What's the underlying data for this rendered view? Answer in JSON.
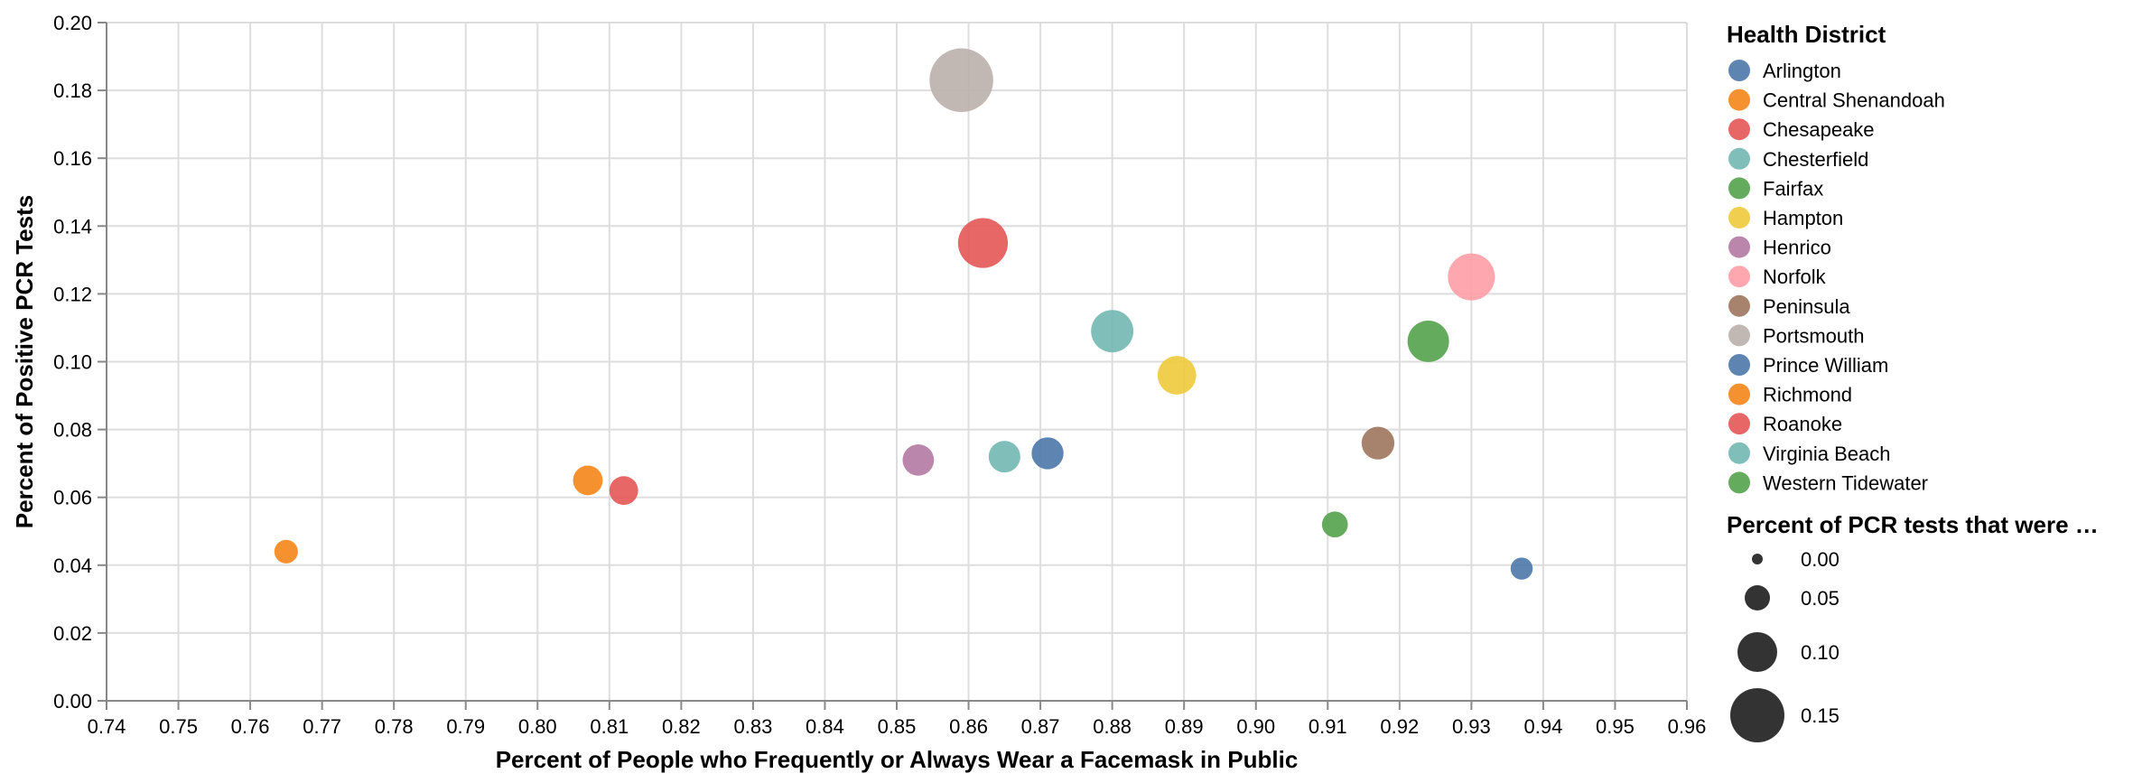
{
  "chart_data": {
    "type": "scatter",
    "title": "",
    "xlabel": "Percent of People who Frequently or Always Wear a Facemask in Public",
    "ylabel": "Percent of Positive PCR Tests",
    "xlim": [
      0.74,
      0.96
    ],
    "ylim": [
      0.0,
      0.2
    ],
    "x_ticks": [
      "0.74",
      "0.75",
      "0.76",
      "0.77",
      "0.78",
      "0.79",
      "0.80",
      "0.81",
      "0.82",
      "0.83",
      "0.84",
      "0.85",
      "0.86",
      "0.87",
      "0.88",
      "0.89",
      "0.90",
      "0.91",
      "0.92",
      "0.93",
      "0.94",
      "0.95",
      "0.96"
    ],
    "y_ticks": [
      "0.00",
      "0.02",
      "0.04",
      "0.06",
      "0.08",
      "0.10",
      "0.12",
      "0.14",
      "0.16",
      "0.18",
      "0.20"
    ],
    "grid": true,
    "legend_position": "right",
    "color_legend": {
      "title": "Health District",
      "items": [
        {
          "name": "Arlington",
          "color": "#4c78a8"
        },
        {
          "name": "Central Shenandoah",
          "color": "#f58518"
        },
        {
          "name": "Chesapeake",
          "color": "#e45756"
        },
        {
          "name": "Chesterfield",
          "color": "#72b7b2"
        },
        {
          "name": "Fairfax",
          "color": "#54a24b"
        },
        {
          "name": "Hampton",
          "color": "#eeca3b"
        },
        {
          "name": "Henrico",
          "color": "#b279a2"
        },
        {
          "name": "Norfolk",
          "color": "#ff9da6"
        },
        {
          "name": "Peninsula",
          "color": "#9d755d"
        },
        {
          "name": "Portsmouth",
          "color": "#bab0ac"
        },
        {
          "name": "Prince William",
          "color": "#4c78a8"
        },
        {
          "name": "Richmond",
          "color": "#f58518"
        },
        {
          "name": "Roanoke",
          "color": "#e45756"
        },
        {
          "name": "Virginia Beach",
          "color": "#72b7b2"
        },
        {
          "name": "Western Tidewater",
          "color": "#54a24b"
        }
      ]
    },
    "size_legend": {
      "title": "Percent of PCR tests that were …",
      "items": [
        {
          "label": "0.00",
          "value": 0.0
        },
        {
          "label": "0.05",
          "value": 0.05
        },
        {
          "label": "0.10",
          "value": 0.1
        },
        {
          "label": "0.15",
          "value": 0.15
        }
      ]
    },
    "points": [
      {
        "district": "Central Shenandoah",
        "x": 0.765,
        "y": 0.044,
        "size": 0.044
      },
      {
        "district": "Richmond",
        "x": 0.807,
        "y": 0.065,
        "size": 0.065
      },
      {
        "district": "Roanoke",
        "x": 0.812,
        "y": 0.062,
        "size": 0.062
      },
      {
        "district": "Henrico",
        "x": 0.853,
        "y": 0.071,
        "size": 0.071
      },
      {
        "district": "Portsmouth",
        "x": 0.859,
        "y": 0.183,
        "size": 0.183
      },
      {
        "district": "Chesapeake",
        "x": 0.862,
        "y": 0.135,
        "size": 0.135
      },
      {
        "district": "Virginia Beach",
        "x": 0.865,
        "y": 0.072,
        "size": 0.072
      },
      {
        "district": "Prince William",
        "x": 0.871,
        "y": 0.073,
        "size": 0.073
      },
      {
        "district": "Chesterfield",
        "x": 0.88,
        "y": 0.109,
        "size": 0.109
      },
      {
        "district": "Hampton",
        "x": 0.889,
        "y": 0.096,
        "size": 0.096
      },
      {
        "district": "Western Tidewater",
        "x": 0.911,
        "y": 0.052,
        "size": 0.052
      },
      {
        "district": "Peninsula",
        "x": 0.917,
        "y": 0.076,
        "size": 0.076
      },
      {
        "district": "Fairfax",
        "x": 0.924,
        "y": 0.106,
        "size": 0.106
      },
      {
        "district": "Norfolk",
        "x": 0.93,
        "y": 0.125,
        "size": 0.125
      },
      {
        "district": "Arlington",
        "x": 0.937,
        "y": 0.039,
        "size": 0.039
      }
    ]
  }
}
